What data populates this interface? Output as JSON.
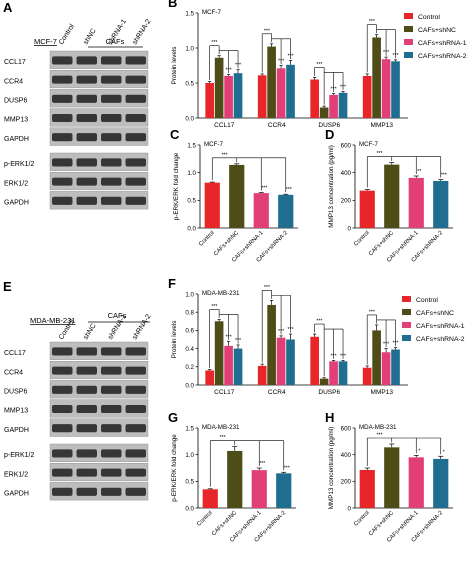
{
  "colors": {
    "control": "#e8262a",
    "shnc": "#4f4d17",
    "shrna1": "#e23e78",
    "shrna2": "#1f6e8f"
  },
  "groups": [
    "Control",
    "CAFs+shNC",
    "CAFs+shRNA-1",
    "CAFs+shRNA-2"
  ],
  "panel_a": {
    "letter": "A",
    "cell_line": "MCF-7",
    "cafs_label": "CAFs",
    "lanes": [
      "Control",
      "shNC",
      "shRNA-1",
      "shRNA-2"
    ],
    "bands": [
      "CCL17",
      "CCR4",
      "DUSP6",
      "MMP13",
      "GAPDH",
      "p-ERK1/2",
      "ERK1/2",
      "GAPDH"
    ]
  },
  "panel_e": {
    "letter": "E",
    "cell_line": "MDA-MB-231",
    "cafs_label": "CAFs",
    "lanes": [
      "Control",
      "shNC",
      "shRNA-1",
      "shRNA-2"
    ],
    "bands": [
      "CCL17",
      "CCR4",
      "DUSP6",
      "MMP13",
      "GAPDH",
      "p-ERK1/2",
      "ERK1/2",
      "GAPDH"
    ]
  },
  "legend_entries": [
    "Control",
    "CAFs+shNC",
    "CAFs+shRNA-1",
    "CAFs+shRNA-2"
  ],
  "chart_data": [
    {
      "id": "B",
      "letter": "B",
      "type": "bar",
      "subtitle": "MCF-7",
      "ylabel": "Protein levels",
      "ylim": [
        0,
        1.5
      ],
      "yticks": [
        0.0,
        0.5,
        1.0,
        1.5
      ],
      "categories": [
        "CCL17",
        "CCR4",
        "DUSP6",
        "MMP13"
      ],
      "series": [
        {
          "name": "Control",
          "values": [
            0.5,
            0.61,
            0.55,
            0.6
          ],
          "errors": [
            0.02,
            0.02,
            0.03,
            0.03
          ]
        },
        {
          "name": "CAFs+shNC",
          "values": [
            0.86,
            1.02,
            0.15,
            1.15
          ],
          "errors": [
            0.03,
            0.04,
            0.02,
            0.04
          ]
        },
        {
          "name": "CAFs+shRNA-1",
          "values": [
            0.6,
            0.71,
            0.33,
            0.84
          ],
          "errors": [
            0.02,
            0.04,
            0.02,
            0.03
          ]
        },
        {
          "name": "CAFs+shRNA-2",
          "values": [
            0.64,
            0.76,
            0.36,
            0.81
          ],
          "errors": [
            0.05,
            0.06,
            0.02,
            0.02
          ]
        }
      ],
      "annotations": [
        {
          "category": 0,
          "marks": [
            "***",
            "***",
            "***"
          ]
        },
        {
          "category": 1,
          "marks": [
            "***",
            "***",
            "***"
          ]
        },
        {
          "category": 2,
          "marks": [
            "***",
            "***",
            "***"
          ]
        },
        {
          "category": 3,
          "marks": [
            "***",
            "***",
            "***"
          ]
        }
      ],
      "legend": "right"
    },
    {
      "id": "C",
      "letter": "C",
      "type": "bar",
      "subtitle": "MCF-7",
      "ylabel": "p-ERK/ERK fold change",
      "ylim": [
        0,
        1.5
      ],
      "yticks": [
        0.0,
        0.5,
        1.0,
        1.5
      ],
      "categories": [
        "Control",
        "CAFs+shNC",
        "CAFs+shRNA-1",
        "CAFs+shRNA-2"
      ],
      "values": [
        0.82,
        1.14,
        0.63,
        0.6
      ],
      "errors": [
        0.01,
        0.02,
        0.01,
        0.01
      ],
      "annotations": [
        "***",
        "***",
        "***"
      ]
    },
    {
      "id": "D",
      "letter": "D",
      "type": "bar",
      "subtitle": "MCF-7",
      "ylabel": "MMP13 concentration (pg/ml)",
      "ylim": [
        0,
        600
      ],
      "yticks": [
        0,
        200,
        400,
        600
      ],
      "categories": [
        "Control",
        "CAFs+shNC",
        "CAFs+shRNA-1",
        "CAFs+shRNA-2"
      ],
      "values": [
        270,
        458,
        362,
        340
      ],
      "errors": [
        8,
        15,
        14,
        10
      ],
      "annotations": [
        "***",
        "**",
        "***"
      ]
    },
    {
      "id": "F",
      "letter": "F",
      "type": "bar",
      "subtitle": "MDA-MB-231",
      "ylabel": "Protein levels",
      "ylim": [
        0,
        1.0
      ],
      "yticks": [
        0.0,
        0.2,
        0.4,
        0.6,
        0.8,
        1.0
      ],
      "categories": [
        "CCL17",
        "CCR4",
        "DUSP6",
        "MMP13"
      ],
      "series": [
        {
          "name": "Control",
          "values": [
            0.16,
            0.21,
            0.53,
            0.19
          ],
          "errors": [
            0.01,
            0.02,
            0.03,
            0.02
          ]
        },
        {
          "name": "CAFs+shNC",
          "values": [
            0.7,
            0.88,
            0.07,
            0.6
          ],
          "errors": [
            0.02,
            0.05,
            0.01,
            0.06
          ]
        },
        {
          "name": "CAFs+shRNA-1",
          "values": [
            0.43,
            0.52,
            0.26,
            0.36
          ],
          "errors": [
            0.05,
            0.02,
            0.01,
            0.04
          ]
        },
        {
          "name": "CAFs+shRNA-2",
          "values": [
            0.4,
            0.5,
            0.26,
            0.39
          ],
          "errors": [
            0.04,
            0.06,
            0.01,
            0.02
          ]
        }
      ],
      "annotations": [
        {
          "category": 0,
          "marks": [
            "***",
            "***",
            "***"
          ]
        },
        {
          "category": 1,
          "marks": [
            "***",
            "***",
            "***"
          ]
        },
        {
          "category": 2,
          "marks": [
            "***",
            "***",
            "***"
          ]
        },
        {
          "category": 3,
          "marks": [
            "***",
            "***",
            "***"
          ]
        }
      ],
      "legend": "right"
    },
    {
      "id": "G",
      "letter": "G",
      "type": "bar",
      "subtitle": "MDA-MB-231",
      "ylabel": "p-ERK/ERK fold change",
      "ylim": [
        0,
        1.5
      ],
      "yticks": [
        0.0,
        0.5,
        1.0,
        1.5
      ],
      "categories": [
        "Control",
        "CAFs+shNC",
        "CAFs+shRNA-1",
        "CAFs+shRNA-2"
      ],
      "values": [
        0.35,
        1.07,
        0.71,
        0.65
      ],
      "errors": [
        0.01,
        0.08,
        0.04,
        0.02
      ],
      "annotations": [
        "***",
        "***",
        "***"
      ]
    },
    {
      "id": "H",
      "letter": "H",
      "type": "bar",
      "subtitle": "MDA-MB-231",
      "ylabel": "MMP13 concentration (pg/ml)",
      "ylim": [
        0,
        600
      ],
      "yticks": [
        0,
        200,
        400,
        600
      ],
      "categories": [
        "Control",
        "CAFs+shNC",
        "CAFs+shRNA-1",
        "CAFs+shRNA-2"
      ],
      "values": [
        285,
        455,
        380,
        368
      ],
      "errors": [
        15,
        25,
        15,
        20
      ],
      "annotations": [
        "***",
        "*",
        "*"
      ]
    }
  ]
}
